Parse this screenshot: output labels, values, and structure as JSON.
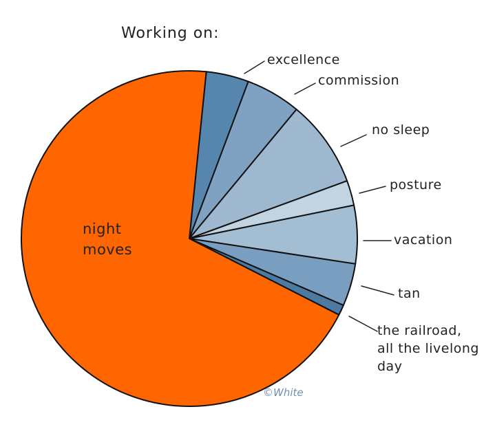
{
  "chart_data": {
    "type": "pie",
    "title": "Working on:",
    "credit": "©White",
    "categories": [
      "excellence",
      "commission",
      "no sleep",
      "posture",
      "vacation",
      "tan",
      "the railroad, all the livelong day",
      "night moves"
    ],
    "values": [
      4.1,
      5.3,
      8.4,
      2.4,
      5.6,
      4.1,
      1,
      69.1
    ],
    "colors": [
      "#5686ad",
      "#7fa2c3",
      "#9db8cf",
      "#c2d4e1",
      "#a3bdd3",
      "#7a9ebf",
      "#4c7aa3",
      "#ff6600"
    ]
  }
}
